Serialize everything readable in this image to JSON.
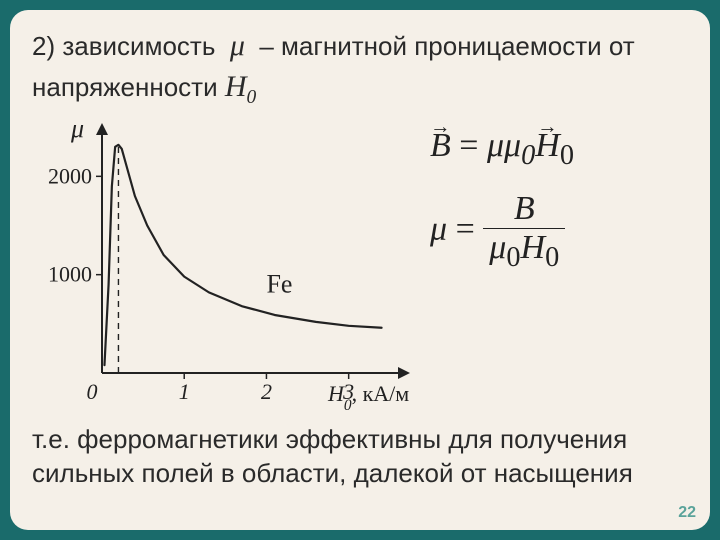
{
  "title": {
    "prefix": "2) зависимость",
    "mu": "μ",
    "middle": "–  магнитной проницаемости от напряженности",
    "H": "H",
    "Hsub": "0"
  },
  "chart": {
    "type": "line",
    "y_label": "μ",
    "x_label": "H",
    "x_label_sub": "0",
    "x_unit": ", кА/м",
    "material_label": "Fe",
    "xlim": [
      0,
      3.6
    ],
    "ylim": [
      0,
      2400
    ],
    "xticks": [
      0,
      1,
      2,
      3
    ],
    "yticks": [
      1000,
      2000
    ],
    "curve": [
      {
        "x": 0.03,
        "y": 80
      },
      {
        "x": 0.08,
        "y": 900
      },
      {
        "x": 0.12,
        "y": 1900
      },
      {
        "x": 0.16,
        "y": 2300
      },
      {
        "x": 0.2,
        "y": 2320
      },
      {
        "x": 0.24,
        "y": 2280
      },
      {
        "x": 0.3,
        "y": 2100
      },
      {
        "x": 0.4,
        "y": 1800
      },
      {
        "x": 0.55,
        "y": 1500
      },
      {
        "x": 0.75,
        "y": 1200
      },
      {
        "x": 1.0,
        "y": 980
      },
      {
        "x": 1.3,
        "y": 820
      },
      {
        "x": 1.7,
        "y": 680
      },
      {
        "x": 2.1,
        "y": 590
      },
      {
        "x": 2.6,
        "y": 520
      },
      {
        "x": 3.0,
        "y": 480
      },
      {
        "x": 3.4,
        "y": 460
      }
    ],
    "peak_x_dashed": 0.2,
    "stroke_color": "#222222",
    "axis_color": "#222222",
    "tick_fontsize": 22,
    "label_fontsize": 26,
    "line_width": 2.2,
    "background": "#f5f0e8"
  },
  "formulas": {
    "eq1_lhs_vec": "B",
    "eq1_rhs_mu": "μμ",
    "eq1_rhs_mu_sub": "0",
    "eq1_rhs_vec": "H",
    "eq1_rhs_vec_sub": "0",
    "eq2_lhs": "μ",
    "eq2_num": "B",
    "eq2_den_mu": "μ",
    "eq2_den_mu_sub": "0",
    "eq2_den_H": "H",
    "eq2_den_H_sub": "0"
  },
  "conclusion": "т.е. ферромагнетики эффективны для получения сильных полей в области, далекой от насыщения",
  "page_number": "22"
}
